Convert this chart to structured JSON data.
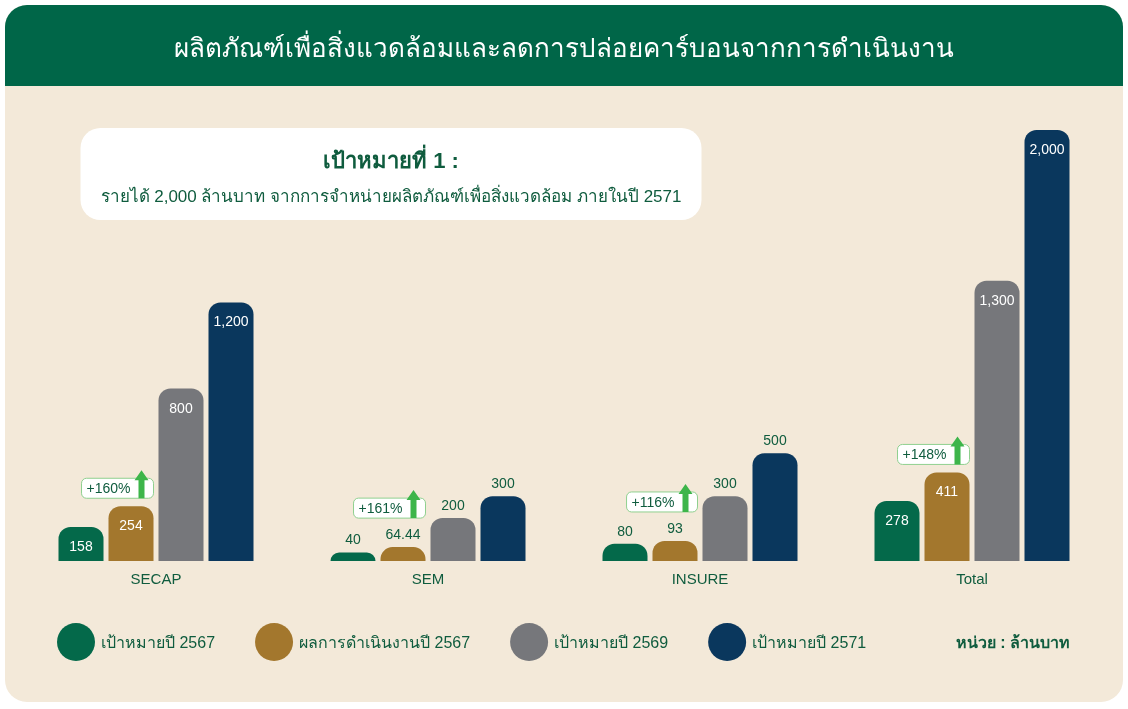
{
  "chart_data": {
    "type": "bar",
    "title": "ผลิตภัณฑ์เพื่อสิ่งแวดล้อมและลดการปล่อยคาร์บอนจากการดำเนินงาน",
    "subtitle": "เป้าหมายที่ 1 :",
    "categories": [
      "SECAP",
      "SEM",
      "INSURE",
      "Total"
    ],
    "series": [
      {
        "name": "เป้าหมายปี 2567",
        "color": "#04694a",
        "values": [
          158,
          40,
          80,
          278
        ],
        "value_labels": [
          "158",
          "40",
          "80",
          "278"
        ]
      },
      {
        "name": "ผลการดำเนินงานปี 2567",
        "color": "#a3772d",
        "values": [
          254,
          64.44,
          93,
          411
        ],
        "value_labels": [
          "254",
          "64.44",
          "93",
          "411"
        ]
      },
      {
        "name": "เป้าหมายปี 2569",
        "color": "#76777b",
        "values": [
          800,
          200,
          300,
          1300
        ],
        "value_labels": [
          "800",
          "200",
          "300",
          "1,300"
        ]
      },
      {
        "name": "เป้าหมายปี 2571",
        "color": "#0a375d",
        "values": [
          1200,
          300,
          500,
          2000
        ],
        "value_labels": [
          "1,200",
          "300",
          "500",
          "2,000"
        ]
      }
    ],
    "legend": "bottom",
    "tick_labels": "x",
    "annotations": [
      "รายได้ 2,000 ล้านบาท จากการจำหน่ายผลิตภัณฑ์เพื่อสิ่งแวดล้อม ภายในปี 2571",
      "หน่วย : ล้านบาท",
      "+160%",
      "+161%",
      "+116%",
      "+148%"
    ]
  }
}
